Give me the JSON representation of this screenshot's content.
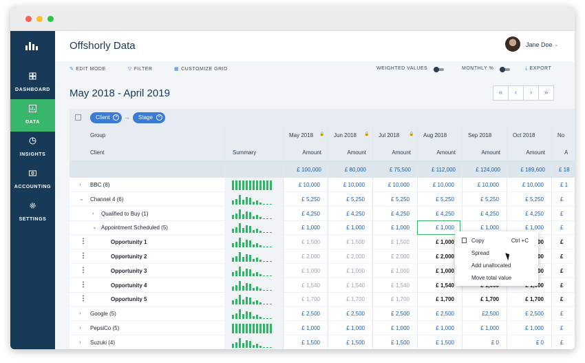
{
  "app": {
    "title": "Offshorly Data"
  },
  "user": {
    "name": "Jane Doe"
  },
  "sidebar": {
    "items": [
      {
        "label": "DASHBOARD",
        "icon": "dashboard-icon"
      },
      {
        "label": "DATA",
        "icon": "data-icon",
        "active": true
      },
      {
        "label": "INSIGHTS",
        "icon": "insights-icon"
      },
      {
        "label": "ACCOUNTING",
        "icon": "accounting-icon"
      },
      {
        "label": "SETTINGS",
        "icon": "settings-icon"
      }
    ]
  },
  "toolbar": {
    "edit_mode": "EDIT MODE",
    "filter": "FILTER",
    "customize_grid": "CUSTOMIZE GRID",
    "weighted_values": "WEIGHTED VALUES",
    "monthly_pct": "MONTHLY %",
    "export": "EXPORT"
  },
  "period": {
    "title": "May 2018 - April 2019"
  },
  "pager": {
    "first": "«",
    "prev": "‹",
    "next": "›",
    "last": "»"
  },
  "filters": {
    "chips": [
      "Client",
      "Stage"
    ],
    "arrow": "→",
    "remove": "×"
  },
  "grid": {
    "group_label": "Group",
    "client_label": "Client",
    "summary_label": "Summary",
    "months": [
      "May 2018",
      "Jun 2018",
      "Jul 2018",
      "Aug 2018",
      "Sep 2018",
      "Oct 2018",
      "No"
    ],
    "locked_months": [
      true,
      true,
      true,
      false,
      false,
      false,
      false
    ],
    "amount_label": "Amount",
    "amount_label_partial": "A",
    "totals": [
      "£ 100,000",
      "£ 80,000",
      "£ 75,500",
      "£ 112,000",
      "£ 124,000",
      "£ 189,600",
      "£ 18"
    ],
    "rows": [
      {
        "name": "BBC (8)",
        "level": 0,
        "toggle": ">",
        "vals": [
          "£ 10,000",
          "£ 10,000",
          "£ 10,000",
          "£ 10,000",
          "£ 10,000",
          "£ 10,000",
          "£ 1"
        ],
        "style": "blue",
        "spark": [
          10,
          10,
          10,
          10,
          10,
          10,
          10,
          10,
          10,
          10,
          10,
          10
        ]
      },
      {
        "name": "Channel 4 (6)",
        "level": 0,
        "toggle": "v",
        "vals": [
          "£ 5,250",
          "£ 5,250",
          "£ 5,250",
          "£ 5,250",
          "£ 5,250",
          "£ 5,250",
          "£"
        ],
        "style": "blue",
        "spark": [
          4,
          6,
          10,
          5,
          8,
          7,
          3,
          4,
          2,
          1,
          1,
          1
        ]
      },
      {
        "name": "Qualified to Buy (1)",
        "level": 1,
        "toggle": ">",
        "vals": [
          "£ 4,250",
          "£ 4,250",
          "£ 4,250",
          "£ 4,250",
          "£ 4,250",
          "£ 4,250",
          "£"
        ],
        "style": "blue",
        "spark": [
          4,
          6,
          10,
          5,
          8,
          7,
          3,
          4,
          2,
          1,
          1,
          1
        ]
      },
      {
        "name": "Appointment Scheduled (5)",
        "level": 1,
        "toggle": "v",
        "vals": [
          "£ 1,000",
          "£ 1,000",
          "£ 1,000",
          "£ 1,000",
          "£ 1,000",
          "£ 1,000",
          "£"
        ],
        "style": "blue",
        "spark": [
          4,
          6,
          10,
          5,
          8,
          7,
          3,
          4,
          2,
          1,
          1,
          1
        ]
      },
      {
        "name": "Opportunity 1",
        "level": 2,
        "toggle": "",
        "vals": [
          "£ 1,500",
          "£ 1,500",
          "£ 1,500",
          "£ 1,000",
          "£ 1,000",
          "£ 1,000",
          "£"
        ],
        "style": "gray",
        "spark": [
          4,
          6,
          10,
          5,
          8,
          7,
          3,
          4,
          2,
          1,
          1,
          1
        ]
      },
      {
        "name": "Opportunity 2",
        "level": 2,
        "toggle": "",
        "vals": [
          "£ 2,000",
          "£ 2,000",
          "£ 2,000",
          "£ 2,000",
          "£ 1,000",
          "£ 1,000",
          "£"
        ],
        "style": "gray",
        "spark": [
          4,
          6,
          10,
          5,
          8,
          7,
          3,
          4,
          2,
          1,
          1,
          1
        ]
      },
      {
        "name": "Opportunity 3",
        "level": 2,
        "toggle": "",
        "vals": [
          "£ 1,000",
          "£ 1,000",
          "£ 1,000",
          "£ 1,000",
          "£ 1,000",
          "£ 1,000",
          "£"
        ],
        "style": "gray",
        "spark": [
          4,
          6,
          10,
          5,
          8,
          7,
          3,
          4,
          2,
          1,
          1,
          1
        ]
      },
      {
        "name": "Opportunity 4",
        "level": 2,
        "toggle": "",
        "vals": [
          "£ 1,540",
          "£ 1,540",
          "£ 1,540",
          "£ 1,540",
          "£ 1,000",
          "£ 1,000",
          "£"
        ],
        "style": "gray",
        "spark": [
          4,
          6,
          10,
          5,
          8,
          7,
          3,
          4,
          2,
          1,
          1,
          1
        ]
      },
      {
        "name": "Opportunity 5",
        "level": 2,
        "toggle": "",
        "vals": [
          "£ 1,700",
          "£ 1,700",
          "£ 1,700",
          "£ 1,700",
          "£ 1,700",
          "£ 1,700",
          "£"
        ],
        "style": "gray",
        "spark": [
          4,
          6,
          10,
          5,
          8,
          7,
          3,
          4,
          2,
          1,
          1,
          1
        ]
      },
      {
        "name": "Google (5)",
        "level": 0,
        "toggle": ">",
        "vals": [
          "£ 2,500",
          "£ 2,500",
          "£ 2,500",
          "£ 2,500",
          "£2,500",
          "£ 2,500",
          "£"
        ],
        "style": "blue",
        "spark": [
          4,
          6,
          10,
          5,
          8,
          7,
          3,
          4,
          2,
          1,
          1,
          1
        ]
      },
      {
        "name": "PepsiCo (5)",
        "level": 0,
        "toggle": ">",
        "vals": [
          "£ 1,000",
          "£ 1,000",
          "£ 1,000",
          "£ 1,000",
          "£ 1,000",
          "£ 1,000",
          "£"
        ],
        "style": "blue",
        "spark": [
          10,
          10,
          10,
          10,
          10,
          10,
          10,
          10,
          10,
          10,
          10,
          10
        ]
      },
      {
        "name": "Suzuki (4)",
        "level": 0,
        "toggle": ">",
        "vals": [
          "£ 1,500",
          "£ 1,500",
          "£ 1,500",
          "£ 1,500",
          "£ 0",
          "£ 0",
          "£"
        ],
        "style": "blue",
        "spark": [
          4,
          6,
          10,
          5,
          8,
          7,
          3,
          4,
          2,
          1,
          1,
          1
        ]
      }
    ]
  },
  "context_menu": {
    "items": [
      "Copy",
      "Spread",
      "Add unallocated",
      "Move total value"
    ],
    "copy_shortcut": "Ctrl +C"
  },
  "colors": {
    "sidebar": "#173a59",
    "active": "#38b76a",
    "accent": "#3a7bd5",
    "bars": "#2fb665"
  }
}
